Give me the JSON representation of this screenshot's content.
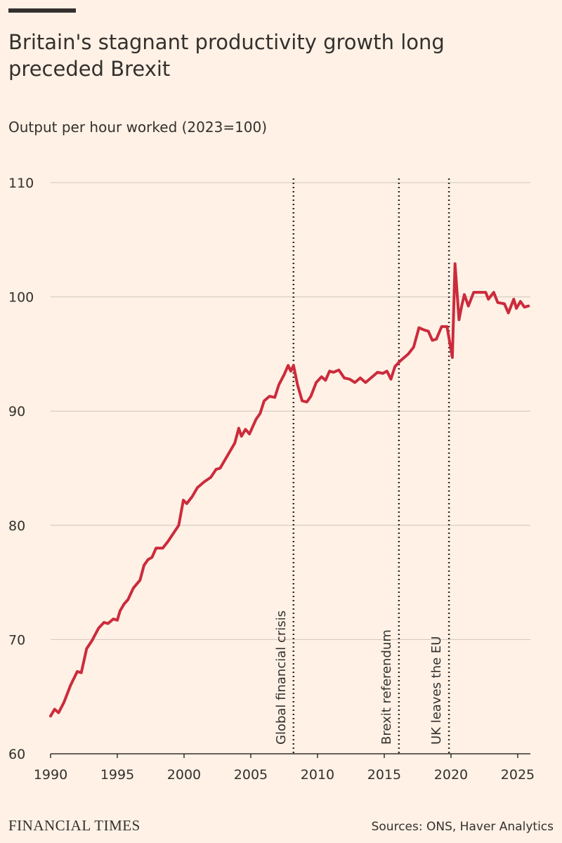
{
  "chart_data": {
    "type": "line",
    "title": "Britain's stagnant productivity growth long preceded Brexit",
    "subtitle": "Output per hour worked (2023=100)",
    "source": "Sources: ONS, Haver Analytics",
    "brand": "FINANCIAL TIMES",
    "xlim": [
      1990,
      2025.95
    ],
    "xticks": [
      1990,
      1995,
      2000,
      2005,
      2010,
      2015,
      2020,
      2025
    ],
    "ylim": [
      60,
      110
    ],
    "yticks": [
      60,
      70,
      80,
      90,
      100,
      110
    ],
    "grid": true,
    "annotations": [
      {
        "text": "Global financial crisis",
        "x": 2008.2
      },
      {
        "text": "Brexit referendum",
        "x": 2016.1
      },
      {
        "text": "UK leaves the EU",
        "x": 2019.85
      }
    ],
    "series": [
      {
        "color": "#cc2b3c",
        "x": [
          1990,
          1990.3,
          1990.6,
          1991.0,
          1991.5,
          1992.0,
          1992.3,
          1992.7,
          1993.1,
          1993.6,
          1994.0,
          1994.3,
          1994.7,
          1995.0,
          1995.2,
          1995.5,
          1995.8,
          1996.2,
          1996.7,
          1997.0,
          1997.3,
          1997.6,
          1997.9,
          1998.4,
          1998.8,
          1999.6,
          1999.95,
          2000.2,
          2000.6,
          2001.0,
          2001.5,
          2002.0,
          2002.4,
          2002.7,
          2003.3,
          2003.8,
          2004.1,
          2004.3,
          2004.6,
          2004.9,
          2005.4,
          2005.7,
          2006.0,
          2006.4,
          2006.8,
          2007.1,
          2007.5,
          2007.8,
          2008.0,
          2008.2,
          2008.5,
          2008.85,
          2009.2,
          2009.5,
          2009.9,
          2010.3,
          2010.6,
          2010.9,
          2011.2,
          2011.6,
          2012.0,
          2012.4,
          2012.8,
          2013.2,
          2013.6,
          2014.0,
          2014.5,
          2014.9,
          2015.2,
          2015.5,
          2015.8,
          2016.2,
          2016.8,
          2017.2,
          2017.6,
          2018.0,
          2018.3,
          2018.6,
          2018.9,
          2019.3,
          2019.7,
          2020.1,
          2020.3,
          2020.6,
          2020.8,
          2021.0,
          2021.3,
          2021.7,
          2022.2,
          2022.6,
          2022.8,
          2023.2,
          2023.5,
          2024.0,
          2024.3,
          2024.7,
          2024.9,
          2025.2,
          2025.5,
          2025.8
        ],
        "values": [
          63.3,
          63.9,
          63.6,
          64.5,
          66.0,
          67.2,
          67.1,
          69.2,
          69.9,
          71.0,
          71.5,
          71.4,
          71.8,
          71.7,
          72.5,
          73.1,
          73.5,
          74.5,
          75.2,
          76.5,
          77.0,
          77.2,
          78.0,
          78.0,
          78.6,
          80.0,
          82.2,
          81.9,
          82.5,
          83.3,
          83.8,
          84.2,
          84.9,
          85.0,
          86.2,
          87.2,
          88.5,
          87.8,
          88.4,
          88.0,
          89.3,
          89.8,
          90.9,
          91.3,
          91.2,
          92.3,
          93.2,
          94.0,
          93.5,
          94.0,
          92.3,
          90.9,
          90.8,
          91.3,
          92.5,
          93.0,
          92.7,
          93.5,
          93.4,
          93.6,
          92.9,
          92.8,
          92.5,
          92.9,
          92.5,
          92.9,
          93.4,
          93.3,
          93.5,
          92.8,
          93.9,
          94.4,
          95.0,
          95.6,
          97.3,
          97.1,
          97.0,
          96.2,
          96.3,
          97.4,
          97.4,
          94.7,
          102.9,
          98.0,
          99.2,
          100.2,
          99.2,
          100.4,
          100.4,
          100.4,
          99.8,
          100.4,
          99.5,
          99.4,
          98.6,
          99.8,
          99.0,
          99.6,
          99.1,
          99.2
        ]
      }
    ]
  }
}
